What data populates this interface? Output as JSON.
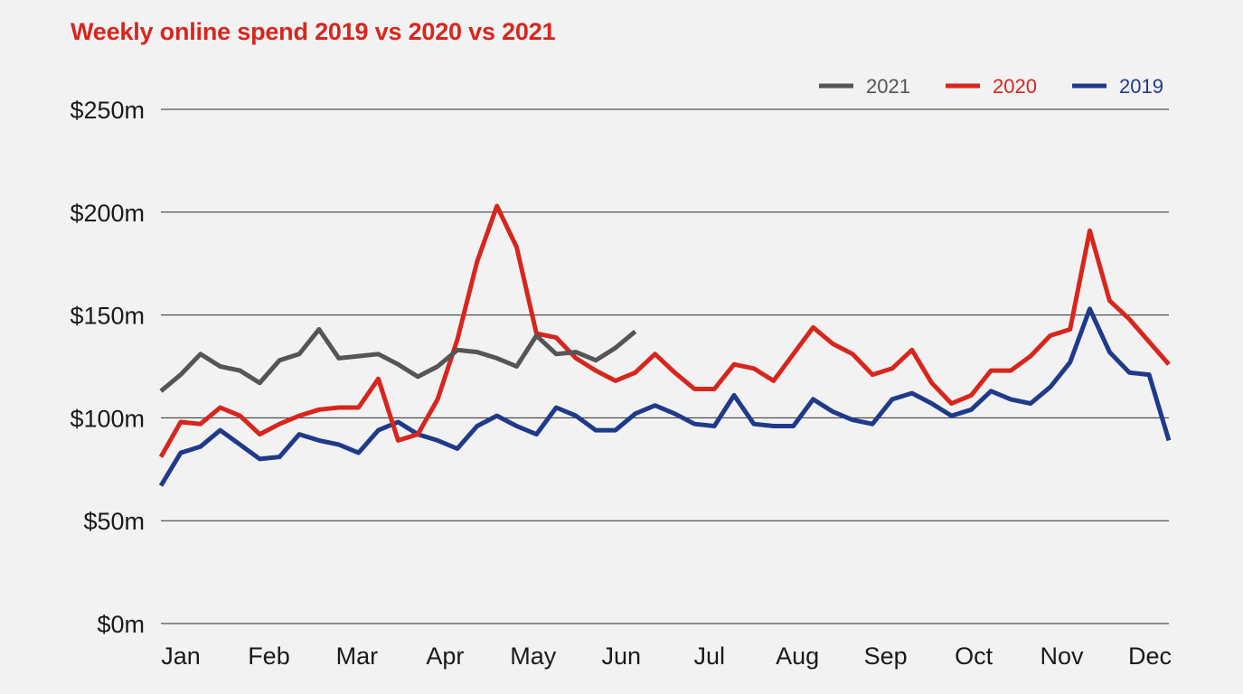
{
  "chart_data": {
    "type": "line",
    "title": "Weekly online spend 2019 vs 2020 vs 2021",
    "xlabel": "",
    "ylabel": "",
    "x_tick_labels": [
      "Jan",
      "Feb",
      "Mar",
      "Apr",
      "May",
      "Jun",
      "Jul",
      "Aug",
      "Sep",
      "Oct",
      "Nov",
      "Dec"
    ],
    "y_tick_labels": [
      "$0m",
      "$50m",
      "$100m",
      "$150m",
      "$200m",
      "$250m"
    ],
    "y_ticks": [
      0,
      50,
      100,
      150,
      200,
      250
    ],
    "ylim": [
      0,
      250
    ],
    "x_unit": "week",
    "xlim": [
      1,
      52
    ],
    "grid": "horizontal",
    "legend_position": "top-right",
    "series": [
      {
        "name": "2021",
        "color": "#555555",
        "values": [
          113,
          121,
          131,
          125,
          123,
          117,
          128,
          131,
          143,
          129,
          130,
          131,
          126,
          120,
          125,
          133,
          132,
          129,
          125,
          140,
          131,
          132,
          128,
          134,
          142
        ]
      },
      {
        "name": "2020",
        "color": "#d7261e",
        "values": [
          81,
          98,
          97,
          105,
          101,
          92,
          97,
          101,
          104,
          105,
          105,
          119,
          89,
          92,
          109,
          138,
          176,
          203,
          183,
          141,
          139,
          129,
          123,
          118,
          122,
          131,
          122,
          114,
          114,
          126,
          124,
          118,
          131,
          144,
          136,
          131,
          121,
          124,
          133,
          117,
          107,
          111,
          123,
          123,
          130,
          140,
          143,
          191,
          157,
          148,
          137,
          126
        ]
      },
      {
        "name": "2019",
        "color": "#1f3a8a",
        "values": [
          67,
          83,
          86,
          94,
          87,
          80,
          81,
          92,
          89,
          87,
          83,
          94,
          98,
          92,
          89,
          85,
          96,
          101,
          96,
          92,
          105,
          101,
          94,
          94,
          102,
          106,
          102,
          97,
          96,
          111,
          97,
          96,
          96,
          109,
          103,
          99,
          97,
          109,
          112,
          107,
          101,
          104,
          113,
          109,
          107,
          115,
          127,
          153,
          132,
          122,
          121,
          89
        ]
      }
    ]
  }
}
